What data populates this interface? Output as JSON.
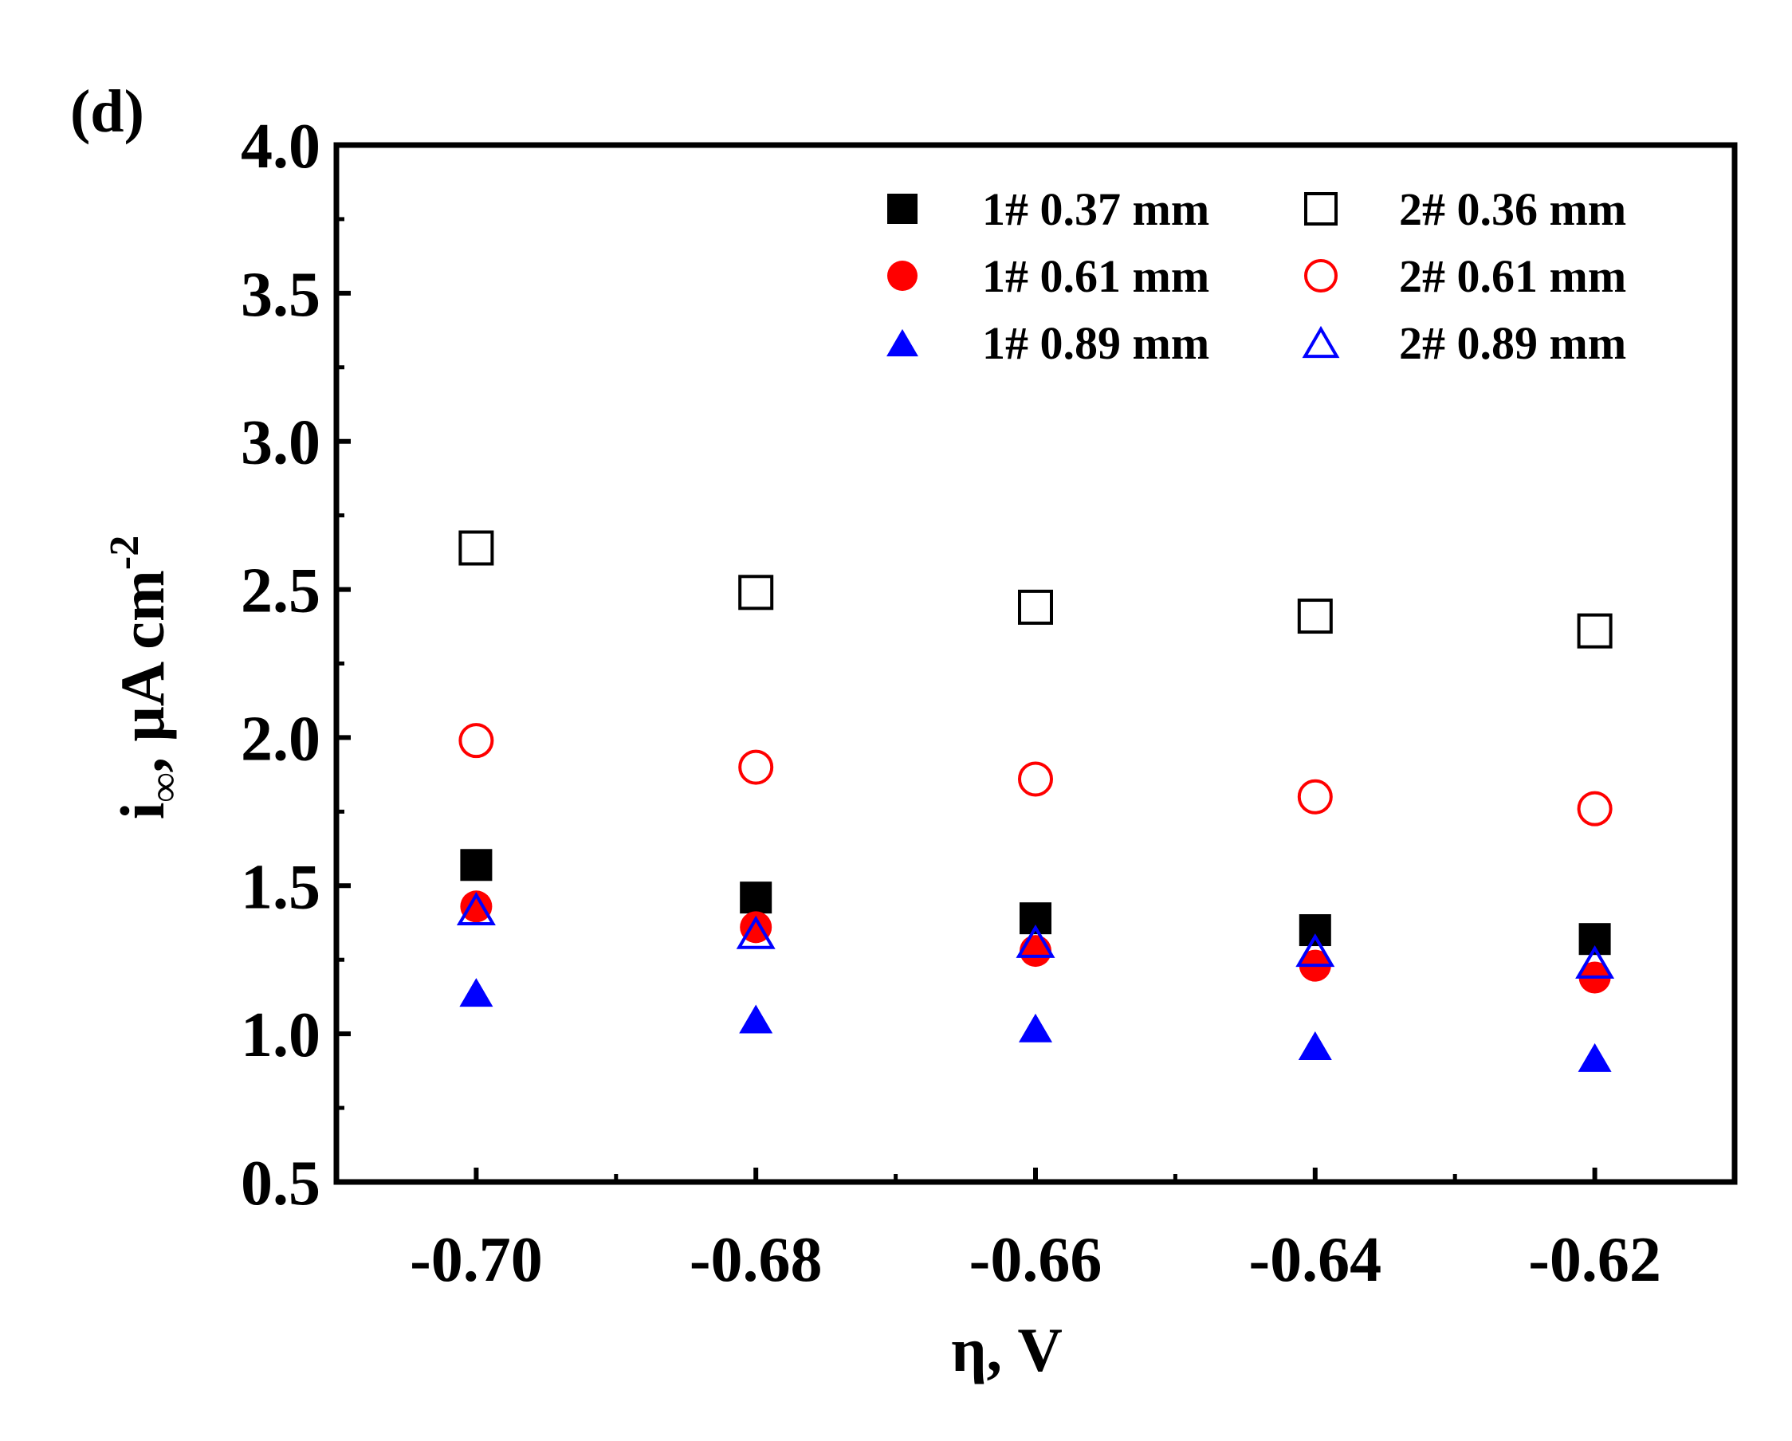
{
  "panel_label": "(d)",
  "chart_data": {
    "type": "scatter",
    "title": "",
    "xlabel": "η, V",
    "ylabel": "i∞, μA cm⁻²",
    "ylabel_parts": {
      "main": "i",
      "subscript": "∞",
      "units": ", μA cm",
      "superscript": "-2"
    },
    "x": [
      -0.7,
      -0.68,
      -0.66,
      -0.64,
      -0.62
    ],
    "xlim": [
      -0.71,
      -0.61
    ],
    "ylim": [
      0.5,
      4.0
    ],
    "xticks": [
      -0.7,
      -0.68,
      -0.66,
      -0.64,
      -0.62
    ],
    "xtick_labels": [
      "-0.70",
      "-0.68",
      "-0.66",
      "-0.64",
      "-0.62"
    ],
    "yticks": [
      0.5,
      1.0,
      1.5,
      2.0,
      2.5,
      3.0,
      3.5,
      4.0
    ],
    "ytick_labels": [
      "0.5",
      "1.0",
      "1.5",
      "2.0",
      "2.5",
      "3.0",
      "3.5",
      "4.0"
    ],
    "grid": false,
    "legend_position": "top-right",
    "series": [
      {
        "name": "1# 0.37 mm",
        "marker": "square",
        "filled": true,
        "color": "#000000",
        "values": [
          1.57,
          1.46,
          1.39,
          1.35,
          1.32
        ]
      },
      {
        "name": "1# 0.61 mm",
        "marker": "circle",
        "filled": true,
        "color": "#ff0000",
        "values": [
          1.43,
          1.36,
          1.28,
          1.23,
          1.19
        ]
      },
      {
        "name": "1# 0.89 mm",
        "marker": "triangle",
        "filled": true,
        "color": "#0000ff",
        "values": [
          1.14,
          1.05,
          1.02,
          0.96,
          0.92
        ]
      },
      {
        "name": "2# 0.36 mm",
        "marker": "square",
        "filled": false,
        "color": "#000000",
        "values": [
          2.64,
          2.49,
          2.44,
          2.41,
          2.36
        ]
      },
      {
        "name": "2# 0.61 mm",
        "marker": "circle",
        "filled": false,
        "color": "#ff0000",
        "values": [
          1.99,
          1.9,
          1.86,
          1.8,
          1.76
        ]
      },
      {
        "name": "2# 0.89 mm",
        "marker": "triangle",
        "filled": false,
        "color": "#0000ff",
        "values": [
          1.42,
          1.34,
          1.31,
          1.28,
          1.24
        ]
      }
    ]
  }
}
